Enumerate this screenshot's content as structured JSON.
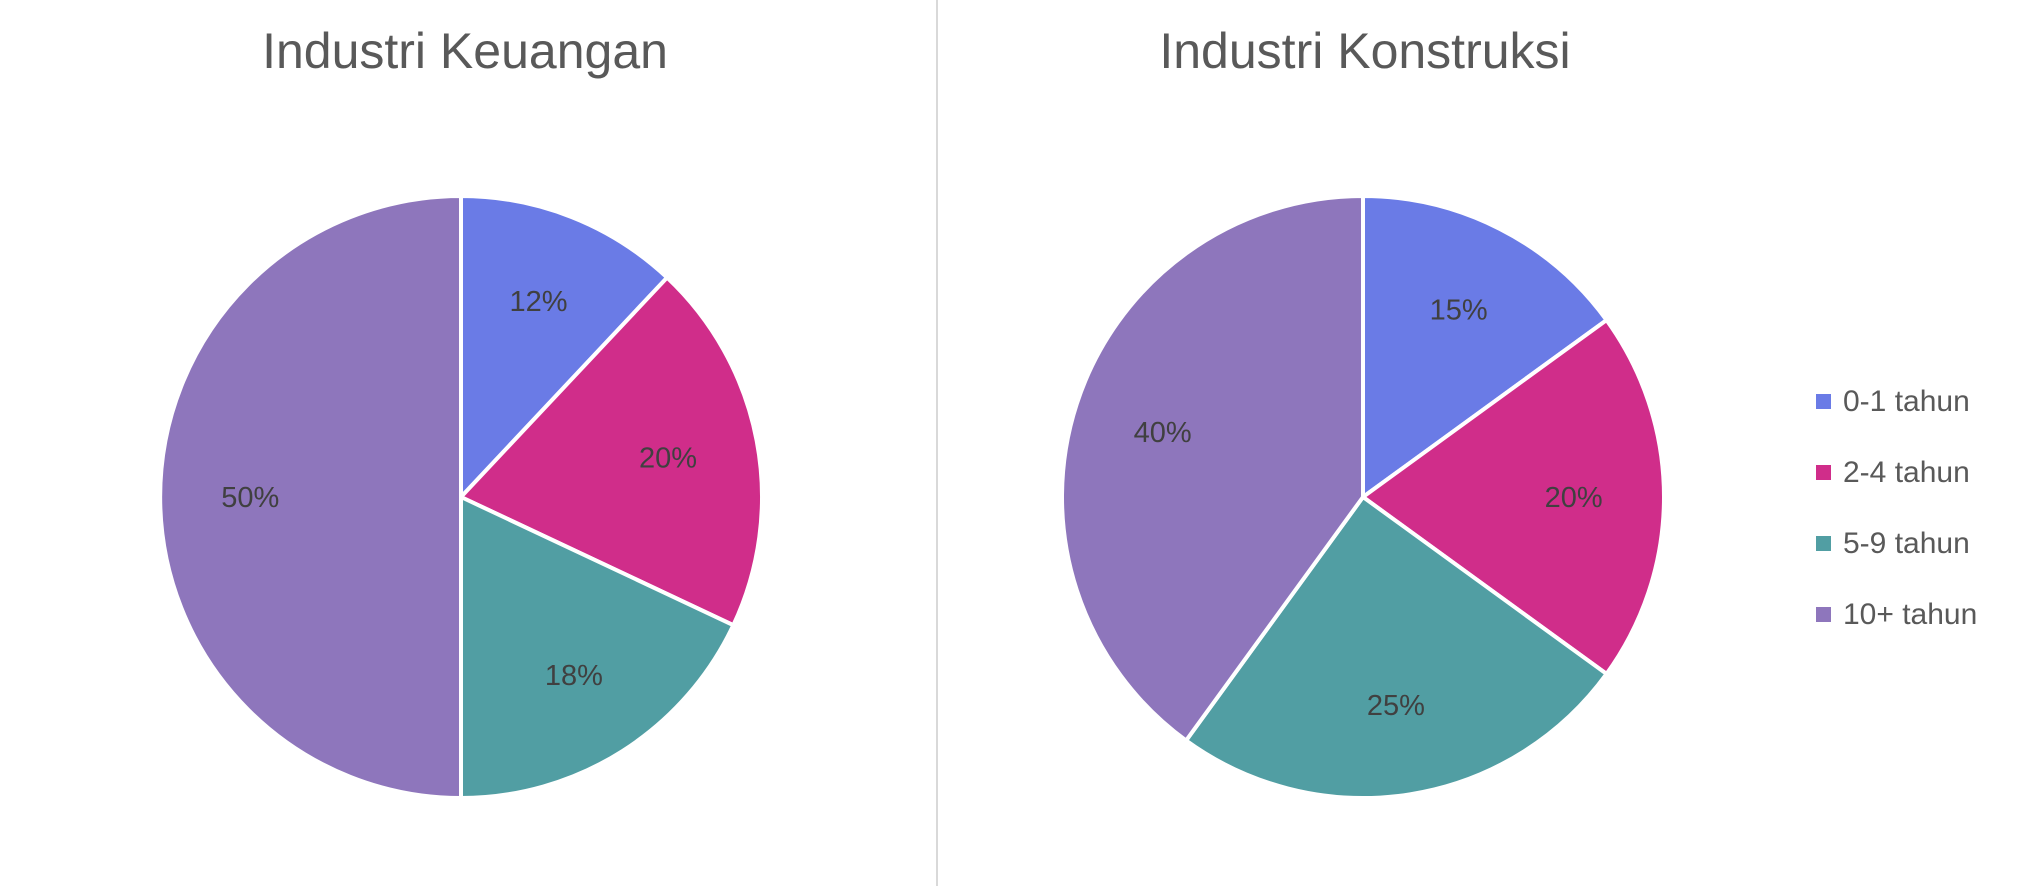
{
  "chart_data": [
    {
      "type": "pie",
      "title": "Industri Keuangan",
      "categories": [
        "0-1 tahun",
        "2-4 tahun",
        "5-9 tahun",
        "10+ tahun"
      ],
      "values": [
        12,
        20,
        18,
        50
      ],
      "labels": [
        "12%",
        "20%",
        "18%",
        "50%"
      ]
    },
    {
      "type": "pie",
      "title": "Industri Konstruksi",
      "categories": [
        "0-1 tahun",
        "2-4 tahun",
        "5-9 tahun",
        "10+ tahun"
      ],
      "values": [
        15,
        20,
        25,
        40
      ],
      "labels": [
        "15%",
        "20%",
        "25%",
        "40%"
      ]
    }
  ],
  "legend": {
    "placement": "right",
    "items": [
      "0-1 tahun",
      "2-4 tahun",
      "5-9 tahun",
      "10+ tahun"
    ]
  },
  "colors": [
    "#6a7be6",
    "#d02d8a",
    "#519ea3",
    "#8e76bc"
  ]
}
